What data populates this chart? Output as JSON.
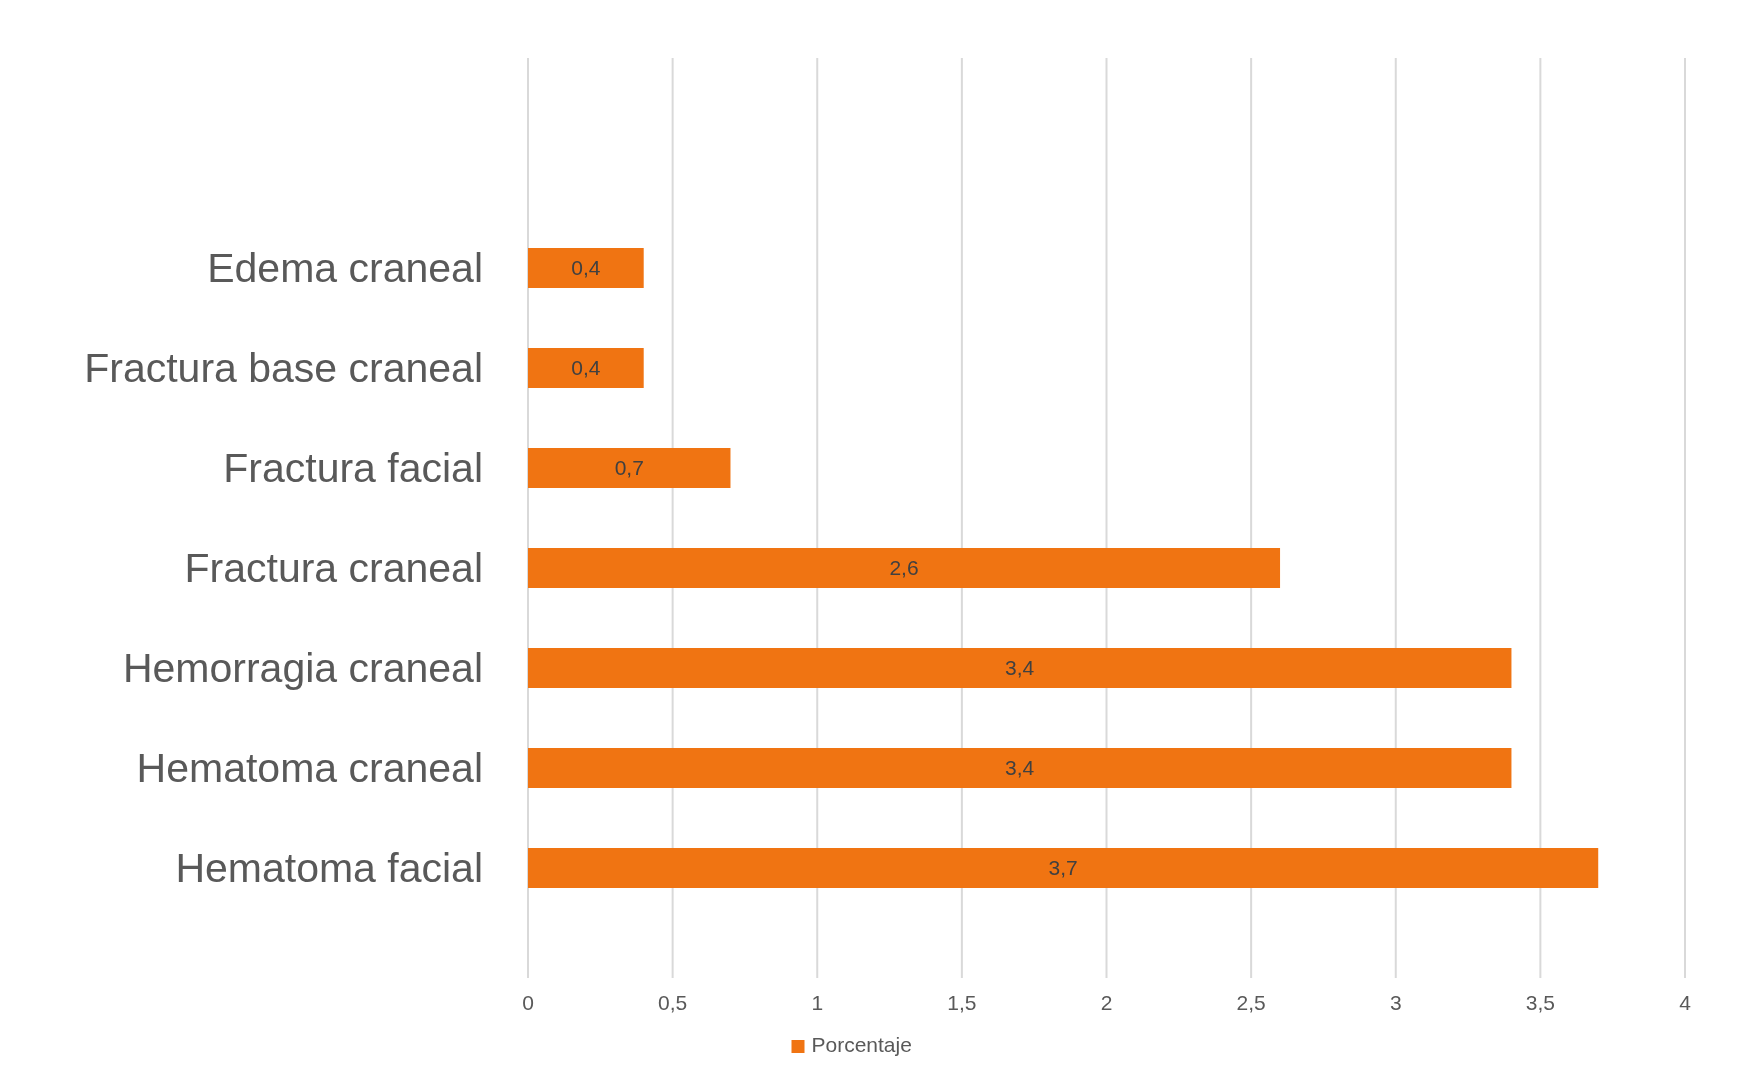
{
  "chart_data": {
    "type": "bar",
    "orientation": "horizontal",
    "categories": [
      "Edema craneal",
      "Fractura base craneal",
      "Fractura facial",
      "Fractura craneal",
      "Hemorragia craneal",
      "Hematoma craneal",
      "Hematoma facial"
    ],
    "series": [
      {
        "name": "Porcentaje",
        "color": "#f07412",
        "values": [
          0.4,
          0.4,
          0.7,
          2.6,
          3.4,
          3.4,
          3.7
        ],
        "value_labels": [
          "0,4",
          "0,4",
          "0,7",
          "2,6",
          "3,4",
          "3,4",
          "3,7"
        ]
      }
    ],
    "xlim": [
      0,
      4
    ],
    "xticks": [
      0,
      {
        "value": 0.5,
        "label": "0,5"
      },
      1,
      {
        "value": 1.5,
        "label": "1,5"
      },
      2,
      {
        "value": 2.5,
        "label": "2,5"
      },
      3,
      {
        "value": 3.5,
        "label": "3,5"
      },
      4
    ],
    "grid": "x",
    "legend": "bottom"
  }
}
